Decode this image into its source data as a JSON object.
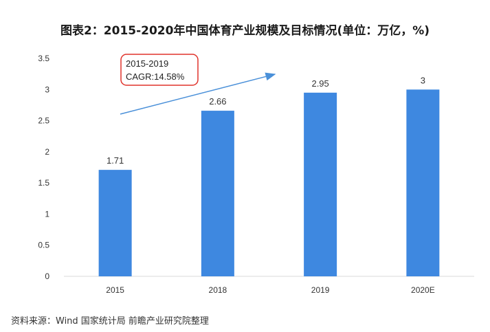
{
  "title": "图表2：2015-2020年中国体育产业规模及目标情况(单位：万亿，%)",
  "annotation": {
    "line1": "2015-2019",
    "line2": "CAGR:14.58%"
  },
  "source": "资料来源：Wind 国家统计局 前瞻产业研究院整理",
  "colors": {
    "bar": "#3E88E0",
    "arrow": "#4A90D9",
    "annotation_border": "#E0322A"
  },
  "chart_data": {
    "type": "bar",
    "title": "图表2：2015-2020年中国体育产业规模及目标情况(单位：万亿，%)",
    "categories": [
      "2015",
      "2018",
      "2019",
      "2020E"
    ],
    "values": [
      1.71,
      2.66,
      2.95,
      3
    ],
    "value_labels": [
      "1.71",
      "2.66",
      "2.95",
      "3"
    ],
    "ylim": [
      0,
      3.5
    ],
    "yticks": [
      "0",
      "0.5",
      "1",
      "1.5",
      "2",
      "2.5",
      "3",
      "3.5"
    ],
    "grid": false,
    "legend": "none"
  }
}
